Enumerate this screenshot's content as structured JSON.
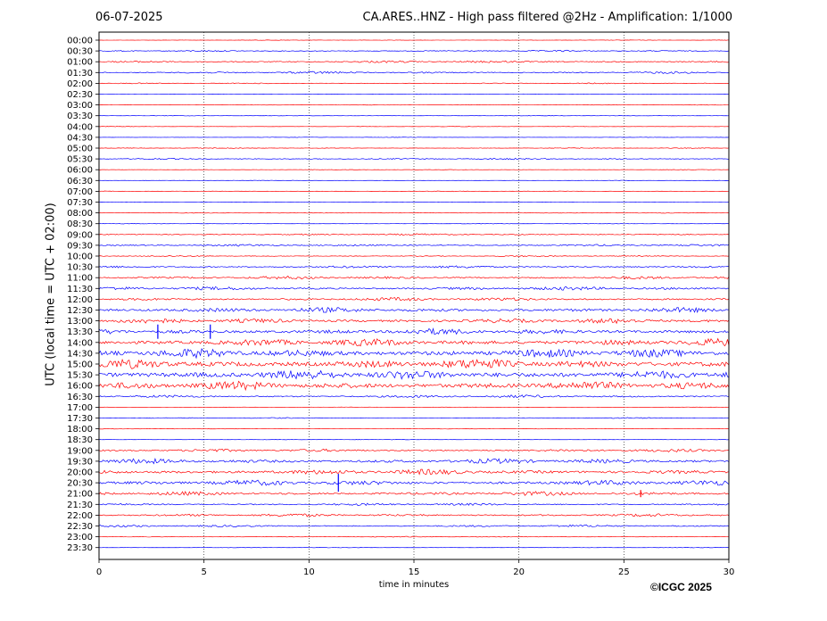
{
  "header": {
    "date": "06-07-2025",
    "title": "CA.ARES..HNZ - High pass filtered @2Hz - Amplification: 1/1000"
  },
  "footer": {
    "copyright": "©ICGC 2025"
  },
  "chart_data": {
    "type": "line",
    "title": "CA.ARES..HNZ - High pass filtered @2Hz - Amplification: 1/1000",
    "xlabel": "time in minutes",
    "ylabel": "UTC (local time = UTC + 02:00)",
    "xlim": [
      0,
      30
    ],
    "xticks": [
      0,
      5,
      10,
      15,
      20,
      25,
      30
    ],
    "grid": "vertical dotted lines at x ticks",
    "colors": {
      "even_rows": "#ff0000",
      "odd_rows": "#0000ff",
      "grid": "#000000"
    },
    "rows": [
      {
        "label": "00:00",
        "amplitude": 0.2
      },
      {
        "label": "00:30",
        "amplitude": 0.6
      },
      {
        "label": "01:00",
        "amplitude": 0.9
      },
      {
        "label": "01:30",
        "amplitude": 0.9
      },
      {
        "label": "02:00",
        "amplitude": 0.4
      },
      {
        "label": "02:30",
        "amplitude": 0.2
      },
      {
        "label": "03:00",
        "amplitude": 0.2
      },
      {
        "label": "03:30",
        "amplitude": 0.2
      },
      {
        "label": "04:00",
        "amplitude": 0.2
      },
      {
        "label": "04:30",
        "amplitude": 0.2
      },
      {
        "label": "05:00",
        "amplitude": 0.3
      },
      {
        "label": "05:30",
        "amplitude": 0.6
      },
      {
        "label": "06:00",
        "amplitude": 0.2
      },
      {
        "label": "06:30",
        "amplitude": 0.2
      },
      {
        "label": "07:00",
        "amplitude": 0.3
      },
      {
        "label": "07:30",
        "amplitude": 0.2
      },
      {
        "label": "08:00",
        "amplitude": 0.3
      },
      {
        "label": "08:30",
        "amplitude": 0.2
      },
      {
        "label": "09:00",
        "amplitude": 0.7
      },
      {
        "label": "09:30",
        "amplitude": 0.8
      },
      {
        "label": "10:00",
        "amplitude": 0.5
      },
      {
        "label": "10:30",
        "amplitude": 1.0
      },
      {
        "label": "11:00",
        "amplitude": 1.2
      },
      {
        "label": "11:30",
        "amplitude": 1.4
      },
      {
        "label": "12:00",
        "amplitude": 1.4
      },
      {
        "label": "12:30",
        "amplitude": 2.0
      },
      {
        "label": "13:00",
        "amplitude": 2.0
      },
      {
        "label": "13:30",
        "amplitude": 2.4
      },
      {
        "label": "14:00",
        "amplitude": 3.0
      },
      {
        "label": "14:30",
        "amplitude": 3.6
      },
      {
        "label": "15:00",
        "amplitude": 4.0
      },
      {
        "label": "15:30",
        "amplitude": 4.0
      },
      {
        "label": "16:00",
        "amplitude": 3.4
      },
      {
        "label": "16:30",
        "amplitude": 1.2
      },
      {
        "label": "17:00",
        "amplitude": 0.2
      },
      {
        "label": "17:30",
        "amplitude": 0.4
      },
      {
        "label": "18:00",
        "amplitude": 0.2
      },
      {
        "label": "18:30",
        "amplitude": 0.2
      },
      {
        "label": "19:00",
        "amplitude": 1.2
      },
      {
        "label": "19:30",
        "amplitude": 2.0
      },
      {
        "label": "20:00",
        "amplitude": 2.2
      },
      {
        "label": "20:30",
        "amplitude": 2.2
      },
      {
        "label": "21:00",
        "amplitude": 1.6
      },
      {
        "label": "21:30",
        "amplitude": 1.0
      },
      {
        "label": "22:00",
        "amplitude": 1.2
      },
      {
        "label": "22:30",
        "amplitude": 0.9
      },
      {
        "label": "23:00",
        "amplitude": 0.4
      },
      {
        "label": "23:30",
        "amplitude": 0.2
      }
    ],
    "events": [
      {
        "row": "13:30",
        "x": 2.8,
        "size": 8
      },
      {
        "row": "13:30",
        "x": 5.3,
        "size": 8
      },
      {
        "row": "20:30",
        "x": 11.4,
        "size": 10
      },
      {
        "row": "21:00",
        "x": 25.8,
        "size": 4
      }
    ]
  }
}
